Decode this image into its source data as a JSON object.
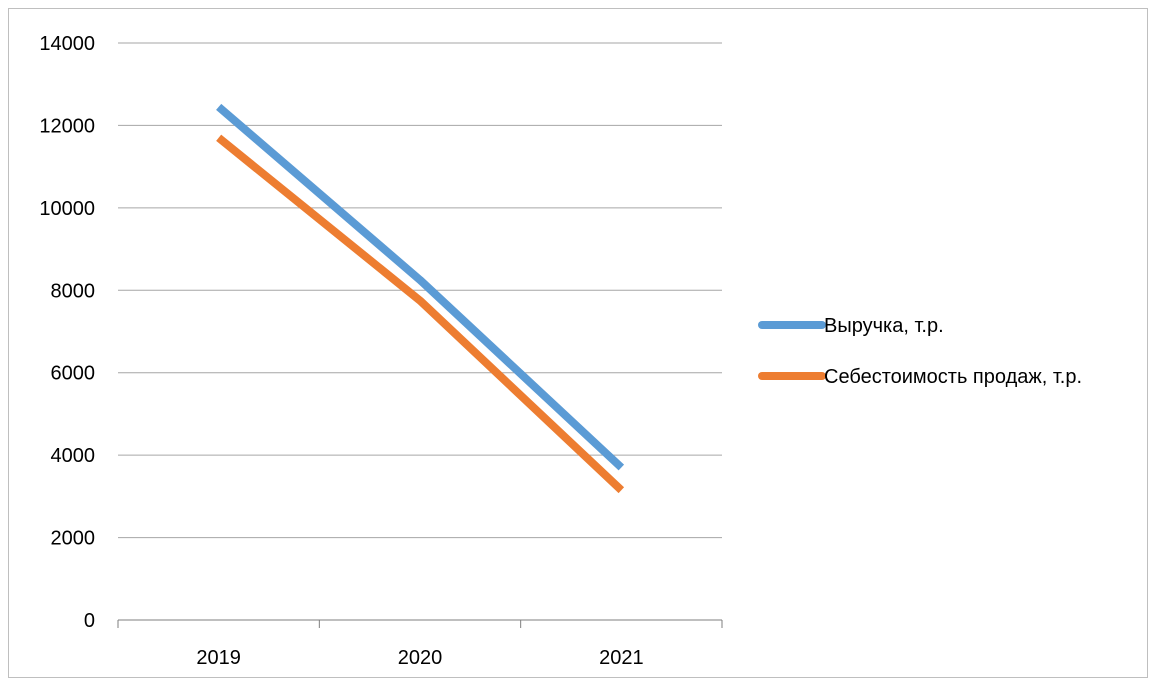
{
  "chart_data": {
    "type": "line",
    "categories": [
      "2019",
      "2020",
      "2021"
    ],
    "series": [
      {
        "name": "Выручка, т.р.",
        "values": [
          12450,
          8250,
          3700
        ],
        "color": "#5b9bd5"
      },
      {
        "name": "Себестоимость продаж, т.р.",
        "values": [
          11700,
          7750,
          3150
        ],
        "color": "#ed7d31"
      }
    ],
    "ylim": [
      0,
      14000
    ],
    "yticks": [
      "0",
      "2000",
      "4000",
      "6000",
      "8000",
      "10000",
      "12000",
      "14000"
    ],
    "grid": true,
    "legend": "right"
  }
}
